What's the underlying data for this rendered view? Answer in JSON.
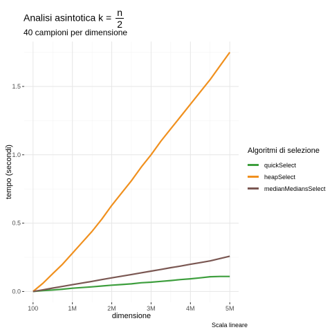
{
  "title": {
    "prefix": "Analisi asintotica k = ",
    "numerator": "n",
    "denominator": "2"
  },
  "subtitle": "40 campioni per dimensione",
  "caption": "Scala lineare",
  "chart_data": {
    "type": "line",
    "xlabel": "dimensione",
    "ylabel": "tempo (secondi)",
    "xlim": [
      100,
      5000000
    ],
    "ylim": [
      0,
      1.75
    ],
    "x_ticks": [
      {
        "value": 100,
        "label": "100"
      },
      {
        "value": 1000000,
        "label": "1M"
      },
      {
        "value": 2000000,
        "label": "2M"
      },
      {
        "value": 3000000,
        "label": "3M"
      },
      {
        "value": 4000000,
        "label": "4M"
      },
      {
        "value": 5000000,
        "label": "5M"
      }
    ],
    "y_ticks": [
      {
        "value": 0,
        "label": "0.0"
      },
      {
        "value": 0.5,
        "label": "0.5"
      },
      {
        "value": 1.0,
        "label": "1.0"
      },
      {
        "value": 1.5,
        "label": "1.5"
      }
    ],
    "grid": true,
    "legend": {
      "title": "Algoritmi di selezione",
      "position": "right"
    },
    "x": [
      100,
      250000,
      500000,
      750000,
      1000000,
      1250000,
      1500000,
      1750000,
      2000000,
      2250000,
      2500000,
      2750000,
      3000000,
      3250000,
      3500000,
      3750000,
      4000000,
      4250000,
      4500000,
      4750000,
      5000000
    ],
    "series": [
      {
        "name": "quickSelect",
        "color": "#3d9e3d",
        "values": [
          0,
          0.006,
          0.011,
          0.017,
          0.024,
          0.029,
          0.034,
          0.04,
          0.046,
          0.051,
          0.056,
          0.064,
          0.068,
          0.074,
          0.08,
          0.087,
          0.093,
          0.1,
          0.108,
          0.11,
          0.11
        ]
      },
      {
        "name": "heapSelect",
        "color": "#f0901e",
        "values": [
          0,
          0.06,
          0.13,
          0.2,
          0.28,
          0.36,
          0.44,
          0.53,
          0.63,
          0.72,
          0.81,
          0.91,
          1.0,
          1.1,
          1.19,
          1.28,
          1.37,
          1.46,
          1.55,
          1.65,
          1.75
        ]
      },
      {
        "name": "medianMediansSelect",
        "color": "#7a5752",
        "values": [
          0,
          0.012,
          0.025,
          0.037,
          0.05,
          0.062,
          0.074,
          0.087,
          0.1,
          0.112,
          0.124,
          0.137,
          0.149,
          0.161,
          0.174,
          0.186,
          0.199,
          0.211,
          0.224,
          0.241,
          0.258
        ]
      }
    ]
  }
}
